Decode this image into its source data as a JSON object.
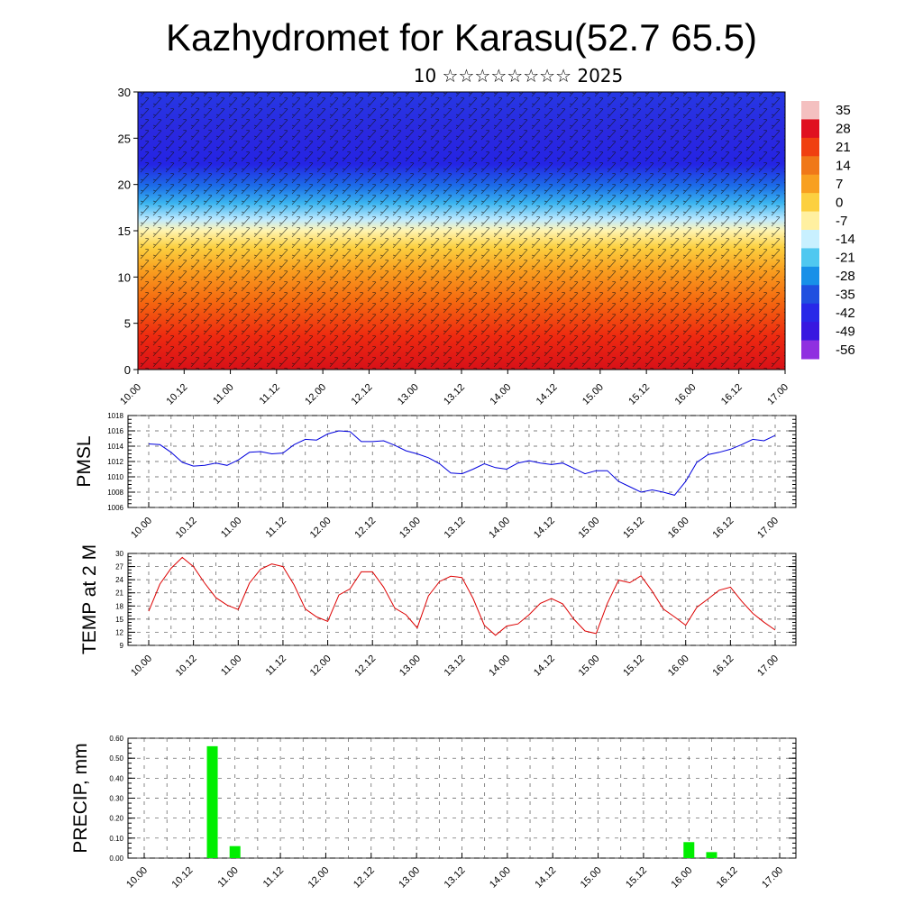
{
  "title": "Kazhydromet for Karasu(52.7 65.5)",
  "subtitle": "10 ☆☆☆☆☆☆☆☆ 2025",
  "x_ticks": [
    "10.00",
    "10.12",
    "11.00",
    "11.12",
    "12.00",
    "12.12",
    "13.00",
    "13.12",
    "14.00",
    "14.12",
    "15.00",
    "15.12",
    "16.00",
    "16.12",
    "17.00"
  ],
  "colorbar": {
    "labels": [
      "35",
      "28",
      "21",
      "14",
      "7",
      "0",
      "-7",
      "-14",
      "-21",
      "-28",
      "-35",
      "-42",
      "-49",
      "-56"
    ],
    "colors_top_to_bottom": [
      "#f4c0c0",
      "#e01020",
      "#f04010",
      "#f07818",
      "#f8a020",
      "#fcd040",
      "#fff0a0",
      "#c8f0ff",
      "#50c8f0",
      "#1890e8",
      "#2050e0",
      "#2828e8",
      "#3818e0",
      "#9030e0"
    ]
  },
  "chart_data": [
    {
      "type": "heatmap",
      "ylim": [
        0,
        30
      ],
      "yticks": [
        0,
        5,
        10,
        15,
        20,
        25,
        30
      ],
      "description_values": "temperature cross-section with wind barbs; warm (red) near surface, cold (blue) aloft",
      "colormap_range": [
        -56,
        35
      ]
    },
    {
      "type": "line",
      "ylabel": "PMSL",
      "ylim": [
        1006,
        1018
      ],
      "yticks": [
        1006,
        1008,
        1010,
        1012,
        1014,
        1016,
        1018
      ],
      "color": "#0000dd",
      "values": [
        1014.3,
        1014.2,
        1013.2,
        1011.9,
        1011.4,
        1011.5,
        1011.8,
        1011.5,
        1012.2,
        1013.2,
        1013.3,
        1013.0,
        1013.1,
        1014.2,
        1014.9,
        1014.8,
        1015.6,
        1016.0,
        1015.9,
        1014.6,
        1014.6,
        1014.7,
        1014.1,
        1013.4,
        1013.0,
        1012.5,
        1011.7,
        1010.5,
        1010.4,
        1011.0,
        1011.7,
        1011.2,
        1011.0,
        1011.8,
        1012.1,
        1011.8,
        1011.6,
        1011.8,
        1011.1,
        1010.4,
        1010.8,
        1010.8,
        1009.4,
        1008.7,
        1008.0,
        1008.3,
        1008.0,
        1007.6,
        1009.4,
        1011.9,
        1012.9,
        1013.2,
        1013.6,
        1014.2,
        1014.9,
        1014.7,
        1015.4
      ]
    },
    {
      "type": "line",
      "ylabel": "TEMP at 2 M",
      "ylim": [
        9,
        30
      ],
      "yticks": [
        9,
        12,
        15,
        18,
        21,
        24,
        27,
        30
      ],
      "color": "#dd0000",
      "values": [
        16.8,
        23.0,
        26.6,
        29.1,
        27.0,
        23.2,
        19.9,
        18.2,
        17.2,
        23.2,
        26.4,
        27.6,
        27.0,
        22.8,
        17.3,
        15.5,
        14.5,
        20.5,
        21.9,
        25.8,
        25.8,
        22.3,
        17.5,
        16.0,
        13.0,
        20.3,
        23.6,
        24.8,
        24.5,
        19.7,
        13.6,
        11.3,
        13.4,
        13.9,
        16.0,
        18.6,
        19.7,
        18.5,
        15.0,
        12.3,
        11.7,
        18.6,
        23.9,
        23.3,
        24.9,
        21.4,
        17.3,
        15.5,
        13.6,
        17.7,
        19.6,
        21.6,
        22.3,
        19.1,
        16.3,
        14.3,
        12.5
      ]
    },
    {
      "type": "bar",
      "ylabel": "PRECIP, mm",
      "ylim": [
        0,
        0.6
      ],
      "yticks": [
        "0.00",
        "0.10",
        "0.20",
        "0.30",
        "0.40",
        "0.50",
        "0.60"
      ],
      "color": "#00ee00",
      "bars": [
        {
          "x": 6,
          "value": 0.56
        },
        {
          "x": 8,
          "value": 0.06
        },
        {
          "x": 48,
          "value": 0.08
        },
        {
          "x": 50,
          "value": 0.03
        }
      ]
    }
  ]
}
